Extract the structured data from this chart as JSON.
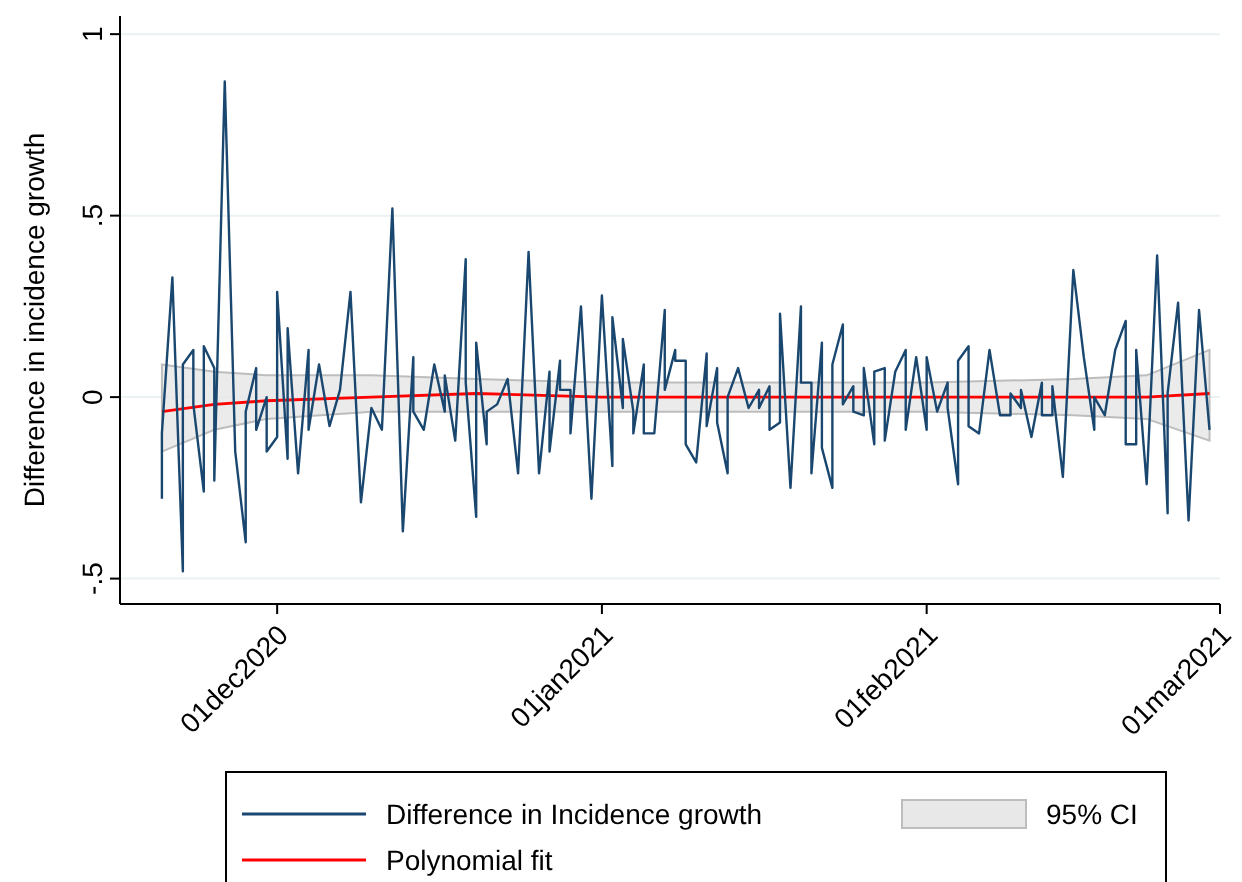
{
  "chart_data": {
    "type": "line",
    "ylabel": "Difference in incidence growth",
    "xlim": [
      "2020-11-16",
      "2021-03-01"
    ],
    "xticks": [
      {
        "value": "2020-12-01",
        "label": "01dec2020"
      },
      {
        "value": "2021-01-01",
        "label": "01jan2021"
      },
      {
        "value": "2021-02-01",
        "label": "01feb2021"
      },
      {
        "value": "2021-03-01",
        "label": "01mar2021"
      }
    ],
    "ylim": [
      -0.57,
      1.05
    ],
    "yticks": [
      {
        "value": -0.5,
        "label": "-.5"
      },
      {
        "value": 0,
        "label": "0"
      },
      {
        "value": 0.5,
        "label": ".5"
      },
      {
        "value": 1,
        "label": "1"
      }
    ],
    "grid": "y",
    "legend": "bottom",
    "series": [
      {
        "name": "Difference in Incidence growth",
        "color": "#1a476f",
        "x": [
          "2020-11-20",
          "2020-11-20",
          "2020-11-21",
          "2020-11-22",
          "2020-11-22",
          "2020-11-23",
          "2020-11-23",
          "2020-11-24",
          "2020-11-24",
          "2020-11-25",
          "2020-11-25",
          "2020-11-26",
          "2020-11-27",
          "2020-11-28",
          "2020-11-28",
          "2020-11-29",
          "2020-11-29",
          "2020-11-30",
          "2020-11-30",
          "2020-12-01",
          "2020-12-01",
          "2020-12-02",
          "2020-12-02",
          "2020-12-03",
          "2020-12-04",
          "2020-12-04",
          "2020-12-05",
          "2020-12-06",
          "2020-12-07",
          "2020-12-08",
          "2020-12-09",
          "2020-12-10",
          "2020-12-11",
          "2020-12-12",
          "2020-12-13",
          "2020-12-14",
          "2020-12-14",
          "2020-12-15",
          "2020-12-16",
          "2020-12-17",
          "2020-12-17",
          "2020-12-18",
          "2020-12-19",
          "2020-12-19",
          "2020-12-20",
          "2020-12-20",
          "2020-12-21",
          "2020-12-21",
          "2020-12-22",
          "2020-12-23",
          "2020-12-24",
          "2020-12-25",
          "2020-12-26",
          "2020-12-27",
          "2020-12-27",
          "2020-12-28",
          "2020-12-28",
          "2020-12-29",
          "2020-12-29",
          "2020-12-30",
          "2020-12-31",
          "2021-01-01",
          "2021-01-02",
          "2021-01-02",
          "2021-01-03",
          "2021-01-03",
          "2021-01-04",
          "2021-01-04",
          "2021-01-05",
          "2021-01-05",
          "2021-01-06",
          "2021-01-07",
          "2021-01-07",
          "2021-01-08",
          "2021-01-08",
          "2021-01-09",
          "2021-01-09",
          "2021-01-10",
          "2021-01-11",
          "2021-01-11",
          "2021-01-12",
          "2021-01-12",
          "2021-01-13",
          "2021-01-13",
          "2021-01-14",
          "2021-01-15",
          "2021-01-16",
          "2021-01-16",
          "2021-01-17",
          "2021-01-17",
          "2021-01-18",
          "2021-01-18",
          "2021-01-19",
          "2021-01-20",
          "2021-01-20",
          "2021-01-21",
          "2021-01-21",
          "2021-01-22",
          "2021-01-22",
          "2021-01-23",
          "2021-01-23",
          "2021-01-24",
          "2021-01-24",
          "2021-01-25",
          "2021-01-25",
          "2021-01-26",
          "2021-01-26",
          "2021-01-27",
          "2021-01-27",
          "2021-01-28",
          "2021-01-28",
          "2021-01-29",
          "2021-01-30",
          "2021-01-30",
          "2021-01-31",
          "2021-02-01",
          "2021-02-01",
          "2021-02-02",
          "2021-02-03",
          "2021-02-03",
          "2021-02-04",
          "2021-02-04",
          "2021-02-05",
          "2021-02-05",
          "2021-02-06",
          "2021-02-07",
          "2021-02-08",
          "2021-02-09",
          "2021-02-09",
          "2021-02-10",
          "2021-02-10",
          "2021-02-11",
          "2021-02-12",
          "2021-02-12",
          "2021-02-13",
          "2021-02-13",
          "2021-02-14",
          "2021-02-15",
          "2021-02-16",
          "2021-02-17",
          "2021-02-17",
          "2021-02-18",
          "2021-02-19",
          "2021-02-20",
          "2021-02-20",
          "2021-02-21",
          "2021-02-21",
          "2021-02-22",
          "2021-02-23",
          "2021-02-24",
          "2021-02-24",
          "2021-02-25",
          "2021-02-26",
          "2021-02-27",
          "2021-02-28"
        ],
        "values": [
          -0.28,
          -0.1,
          0.33,
          -0.48,
          0.09,
          0.13,
          -0.02,
          -0.26,
          0.14,
          0.08,
          -0.23,
          0.87,
          -0.15,
          -0.4,
          -0.04,
          0.08,
          -0.09,
          0,
          -0.15,
          -0.11,
          0.29,
          -0.17,
          0.19,
          -0.21,
          0.13,
          -0.09,
          0.09,
          -0.08,
          0.02,
          0.29,
          -0.29,
          -0.03,
          -0.09,
          0.52,
          -0.37,
          0.11,
          -0.04,
          -0.09,
          0.09,
          -0.04,
          0.06,
          -0.12,
          0.38,
          0.04,
          -0.33,
          0.15,
          -0.13,
          -0.04,
          -0.02,
          0.05,
          -0.21,
          0.4,
          -0.21,
          0.07,
          -0.15,
          0.1,
          0.02,
          0.02,
          -0.1,
          0.25,
          -0.28,
          0.28,
          -0.19,
          0.22,
          -0.03,
          0.16,
          -0.04,
          -0.1,
          0.09,
          -0.1,
          -0.1,
          0.24,
          0.02,
          0.13,
          0.1,
          0.1,
          -0.13,
          -0.18,
          0.12,
          -0.08,
          0.08,
          -0.07,
          -0.21,
          0,
          0.08,
          -0.03,
          0.02,
          -0.03,
          0.03,
          -0.09,
          -0.07,
          0.23,
          -0.25,
          0.25,
          0.04,
          0.04,
          -0.21,
          0.15,
          -0.14,
          -0.25,
          0.09,
          0.2,
          -0.02,
          0.03,
          -0.04,
          -0.05,
          0.08,
          -0.13,
          0.07,
          0.08,
          -0.12,
          0.07,
          0.13,
          -0.09,
          0.11,
          -0.09,
          0.11,
          -0.04,
          0.04,
          -0.03,
          -0.24,
          0.1,
          0.14,
          -0.08,
          -0.1,
          0.13,
          -0.05,
          -0.05,
          0.01,
          -0.03,
          0.02,
          -0.11,
          0.04,
          -0.05,
          -0.05,
          0.03,
          -0.22,
          0.35,
          0.11,
          -0.09,
          0,
          -0.05,
          0.13,
          0.21,
          -0.13,
          -0.13,
          0.13,
          -0.24,
          0.39,
          -0.32,
          0.01,
          0.26,
          -0.34,
          0.24,
          -0.09
        ]
      },
      {
        "name": "Polynomial fit",
        "color": "#ff0000",
        "x": [
          "2020-11-20",
          "2020-11-25",
          "2020-11-30",
          "2020-12-10",
          "2020-12-20",
          "2021-01-01",
          "2021-01-15",
          "2021-02-01",
          "2021-02-15",
          "2021-02-22",
          "2021-02-28"
        ],
        "values": [
          -0.04,
          -0.02,
          -0.01,
          0,
          0.01,
          0,
          0,
          0,
          0,
          0,
          0.01
        ],
        "lower": [
          -0.15,
          -0.09,
          -0.06,
          -0.04,
          -0.04,
          -0.04,
          -0.04,
          -0.04,
          -0.05,
          -0.06,
          -0.12
        ],
        "upper": [
          0.09,
          0.07,
          0.06,
          0.06,
          0.05,
          0.04,
          0.04,
          0.04,
          0.05,
          0.06,
          0.13
        ]
      }
    ],
    "annotations": [
      "95% CI"
    ]
  }
}
